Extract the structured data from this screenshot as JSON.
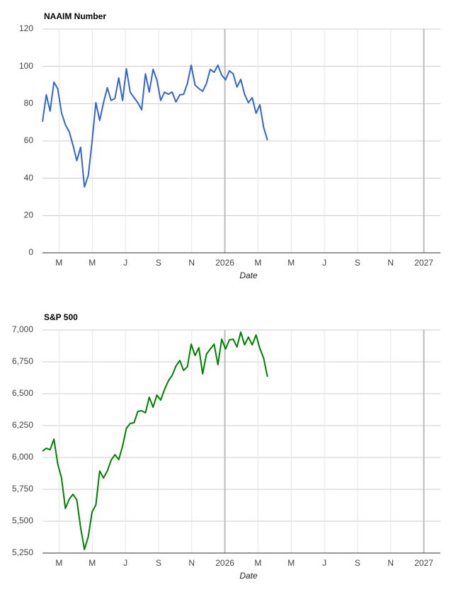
{
  "chart_data": [
    {
      "type": "line",
      "title": "NAAIM Number",
      "x_label": "Date",
      "x": [
        1.0,
        1.23,
        1.46,
        1.69,
        1.92,
        2.15,
        2.38,
        2.61,
        2.84,
        3.07,
        3.3,
        3.53,
        3.76,
        3.99,
        4.22,
        4.45,
        4.68,
        4.91,
        5.14,
        5.37,
        5.6,
        5.83,
        6.06,
        6.29,
        6.52,
        6.75,
        6.98,
        7.21,
        7.44,
        7.67,
        7.9,
        8.13,
        8.36,
        8.59,
        8.82,
        9.05,
        9.28,
        9.51,
        9.74,
        9.97,
        10.2,
        10.43,
        10.66,
        10.89,
        11.12,
        11.35,
        11.58,
        11.81,
        12.04,
        12.27,
        12.5,
        12.73,
        12.96,
        13.19,
        13.42,
        13.65,
        13.88,
        14.11,
        14.34,
        14.57
      ],
      "series": [
        {
          "color": "#3366cc",
          "values": [
            70.3,
            84.7,
            76,
            91.5,
            88,
            75,
            68.7,
            65,
            57.7,
            49.4,
            56.6,
            35.3,
            41.4,
            59.6,
            80.5,
            71,
            80.5,
            88.5,
            81.7,
            82.8,
            93.8,
            81.7,
            98.7,
            86.2,
            83.2,
            80.5,
            76.7,
            96,
            86.2,
            98.4,
            92.7,
            81.7,
            86.2,
            85,
            86.2,
            80.9,
            84.7,
            85,
            90.8,
            100.6,
            90,
            88.1,
            86.6,
            90.8,
            98.4,
            96.8,
            100.6,
            95.3,
            92.7,
            97.6,
            96,
            88.9,
            93,
            85,
            80.5,
            83.2,
            74.8,
            79.4,
            67.2,
            60.4
          ]
        }
      ],
      "xlim": [
        1,
        25
      ],
      "xticks": [
        {
          "value": 2,
          "label": "M"
        },
        {
          "value": 4,
          "label": "M"
        },
        {
          "value": 6,
          "label": "J"
        },
        {
          "value": 8,
          "label": "S"
        },
        {
          "value": 10,
          "label": "N"
        },
        {
          "value": 12,
          "label": "2026"
        },
        {
          "value": 14,
          "label": "M"
        },
        {
          "value": 16,
          "label": "M"
        },
        {
          "value": 18,
          "label": "J"
        },
        {
          "value": 20,
          "label": "S"
        },
        {
          "value": 22,
          "label": "N"
        },
        {
          "value": 24,
          "label": "2027"
        }
      ],
      "ylim": [
        0,
        120
      ],
      "yticks": [
        0,
        20,
        40,
        60,
        80,
        100,
        120
      ],
      "grid": true
    },
    {
      "type": "line",
      "title": "S&P 500",
      "x_label": "Date",
      "x": [
        1.0,
        1.23,
        1.46,
        1.69,
        1.92,
        2.15,
        2.38,
        2.61,
        2.84,
        3.07,
        3.3,
        3.53,
        3.76,
        3.99,
        4.22,
        4.45,
        4.68,
        4.91,
        5.14,
        5.37,
        5.6,
        5.83,
        6.06,
        6.29,
        6.52,
        6.75,
        6.98,
        7.21,
        7.44,
        7.67,
        7.9,
        8.13,
        8.36,
        8.59,
        8.82,
        9.05,
        9.28,
        9.51,
        9.74,
        9.97,
        10.2,
        10.43,
        10.66,
        10.89,
        11.12,
        11.35,
        11.58,
        11.81,
        12.04,
        12.27,
        12.5,
        12.73,
        12.96,
        13.19,
        13.42,
        13.65,
        13.88,
        14.11,
        14.34,
        14.57
      ],
      "series": [
        {
          "color": "#008000",
          "values": [
            6050,
            6072,
            6061,
            6144,
            5950,
            5839,
            5600,
            5672,
            5711,
            5667,
            5450,
            5278,
            5378,
            5572,
            5628,
            5894,
            5839,
            5894,
            5978,
            6022,
            5983,
            6089,
            6228,
            6267,
            6272,
            6361,
            6367,
            6350,
            6472,
            6394,
            6489,
            6450,
            6533,
            6600,
            6644,
            6717,
            6761,
            6683,
            6711,
            6889,
            6800,
            6861,
            6656,
            6811,
            6850,
            6889,
            6728,
            6928,
            6850,
            6922,
            6928,
            6867,
            6983,
            6883,
            6944,
            6883,
            6961,
            6856,
            6778,
            6633
          ]
        }
      ],
      "xlim": [
        1,
        25
      ],
      "xticks": [
        {
          "value": 2,
          "label": "M"
        },
        {
          "value": 4,
          "label": "M"
        },
        {
          "value": 6,
          "label": "J"
        },
        {
          "value": 8,
          "label": "S"
        },
        {
          "value": 10,
          "label": "N"
        },
        {
          "value": 12,
          "label": "2026"
        },
        {
          "value": 14,
          "label": "M"
        },
        {
          "value": 16,
          "label": "M"
        },
        {
          "value": 18,
          "label": "J"
        },
        {
          "value": 20,
          "label": "S"
        },
        {
          "value": 22,
          "label": "N"
        },
        {
          "value": 24,
          "label": "2027"
        }
      ],
      "ylim": [
        5250,
        7000
      ],
      "yticks": [
        {
          "value": 5250,
          "label": "5,250"
        },
        {
          "value": 5500,
          "label": "5,500"
        },
        {
          "value": 5750,
          "label": "5,750"
        },
        {
          "value": 6000,
          "label": "6,000"
        },
        {
          "value": 6250,
          "label": "6,250"
        },
        {
          "value": 6500,
          "label": "6,500"
        },
        {
          "value": 6750,
          "label": "6,750"
        },
        {
          "value": 7000,
          "label": "7,000"
        }
      ],
      "grid": true
    }
  ]
}
